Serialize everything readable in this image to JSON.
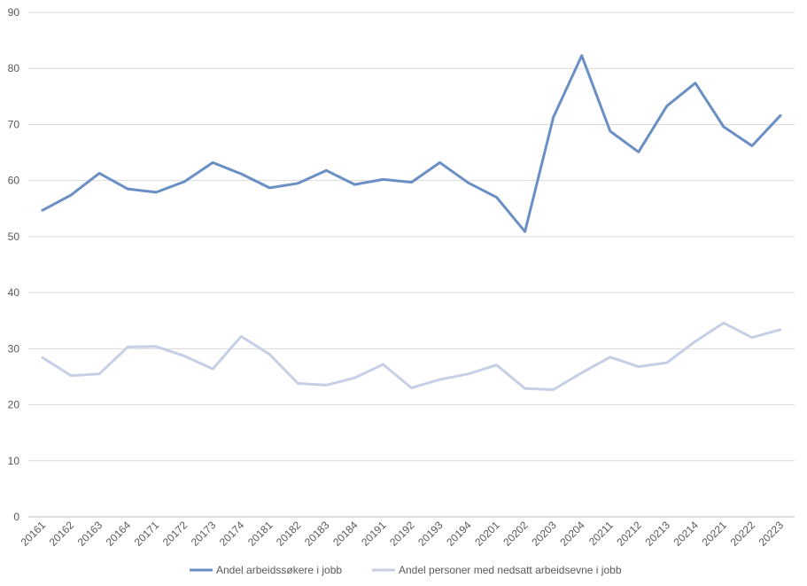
{
  "chart_data": {
    "type": "line",
    "title": "",
    "xlabel": "",
    "ylabel": "",
    "ylim": [
      0,
      90
    ],
    "yticks": [
      0,
      10,
      20,
      30,
      40,
      50,
      60,
      70,
      80,
      90
    ],
    "grid": true,
    "legend_position": "bottom",
    "categories": [
      "20161",
      "20162",
      "20163",
      "20164",
      "20171",
      "20172",
      "20173",
      "20174",
      "20181",
      "20182",
      "20183",
      "20184",
      "20191",
      "20192",
      "20193",
      "20194",
      "20201",
      "20202",
      "20203",
      "20204",
      "20211",
      "20212",
      "20213",
      "20214",
      "20221",
      "20222",
      "20223"
    ],
    "series": [
      {
        "name": "Andel arbeidssøkere i jobb",
        "color": "#6a8fc5",
        "values": [
          54.7,
          57.4,
          61.3,
          58.5,
          57.9,
          59.8,
          63.2,
          61.2,
          58.7,
          59.5,
          61.8,
          59.3,
          60.2,
          59.7,
          63.2,
          59.6,
          57.0,
          50.9,
          71.3,
          82.3,
          68.8,
          65.1,
          73.3,
          77.4,
          69.6,
          66.2,
          71.6
        ]
      },
      {
        "name": "Andel personer med nedsatt arbeidsevne i jobb",
        "color": "#c5cfe6",
        "values": [
          28.4,
          25.2,
          25.5,
          30.3,
          30.4,
          28.7,
          26.4,
          32.2,
          29.0,
          23.8,
          23.5,
          24.8,
          27.2,
          23.0,
          24.5,
          25.5,
          27.1,
          22.9,
          22.7,
          25.7,
          28.5,
          26.8,
          27.5,
          31.3,
          34.6,
          32.0,
          33.4
        ]
      }
    ]
  }
}
